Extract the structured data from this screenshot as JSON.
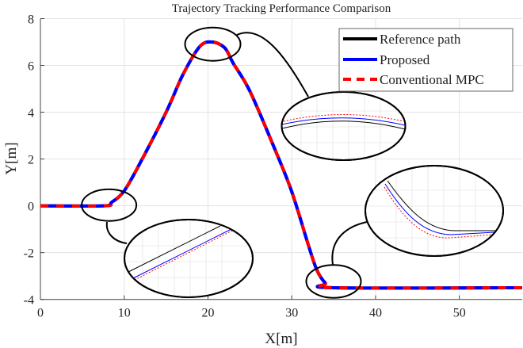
{
  "chart_data": {
    "type": "line",
    "title": "Trajectory Tracking Performance Comparison",
    "xlabel": "X[m]",
    "ylabel": "Y[m]",
    "xlim": [
      0,
      57.5
    ],
    "ylim": [
      -4,
      8
    ],
    "xticks": [
      0,
      10,
      20,
      30,
      40,
      50
    ],
    "yticks": [
      -4,
      -2,
      0,
      2,
      4,
      6,
      8
    ],
    "grid": true,
    "legend_position": "top-right",
    "series": [
      {
        "name": "Reference path",
        "color": "#000000",
        "style": "solid",
        "x": [
          0,
          7.6,
          8.5,
          10,
          12,
          15,
          17,
          19,
          20.5,
          22,
          23,
          25,
          28,
          30,
          32,
          33,
          34,
          35,
          57.5
        ],
        "y": [
          0,
          0,
          0.15,
          0.64,
          1.9,
          4.0,
          5.6,
          6.8,
          7.0,
          6.75,
          6.1,
          4.9,
          2.4,
          0.6,
          -1.7,
          -2.75,
          -3.3,
          -3.5,
          -3.5
        ]
      },
      {
        "name": "Proposed",
        "color": "#0000ff",
        "style": "solid",
        "x": [
          0,
          7.6,
          8.5,
          10,
          12,
          15,
          17,
          19,
          20.5,
          22,
          23,
          25,
          28,
          30,
          32,
          33,
          34,
          35,
          57.5
        ],
        "y": [
          0,
          0,
          0.15,
          0.64,
          1.9,
          4.0,
          5.6,
          6.8,
          7.0,
          6.75,
          6.1,
          4.9,
          2.4,
          0.6,
          -1.7,
          -2.75,
          -3.3,
          -3.5,
          -3.5
        ]
      },
      {
        "name": "Conventional MPC",
        "color": "#ff0000",
        "style": "dashed",
        "x": [
          0,
          7.6,
          8.5,
          10,
          12,
          15,
          17,
          19,
          20.5,
          22,
          23,
          25,
          28,
          30,
          32,
          33,
          34,
          35,
          57.5
        ],
        "y": [
          0,
          0,
          0.15,
          0.64,
          1.9,
          4.0,
          5.6,
          6.8,
          7.0,
          6.75,
          6.1,
          4.9,
          2.4,
          0.6,
          -1.7,
          -2.75,
          -3.3,
          -3.5,
          -3.5
        ]
      }
    ],
    "annotations": [
      "zoom inset at start of rise",
      "zoom inset at peak",
      "zoom inset at end of descent"
    ]
  }
}
